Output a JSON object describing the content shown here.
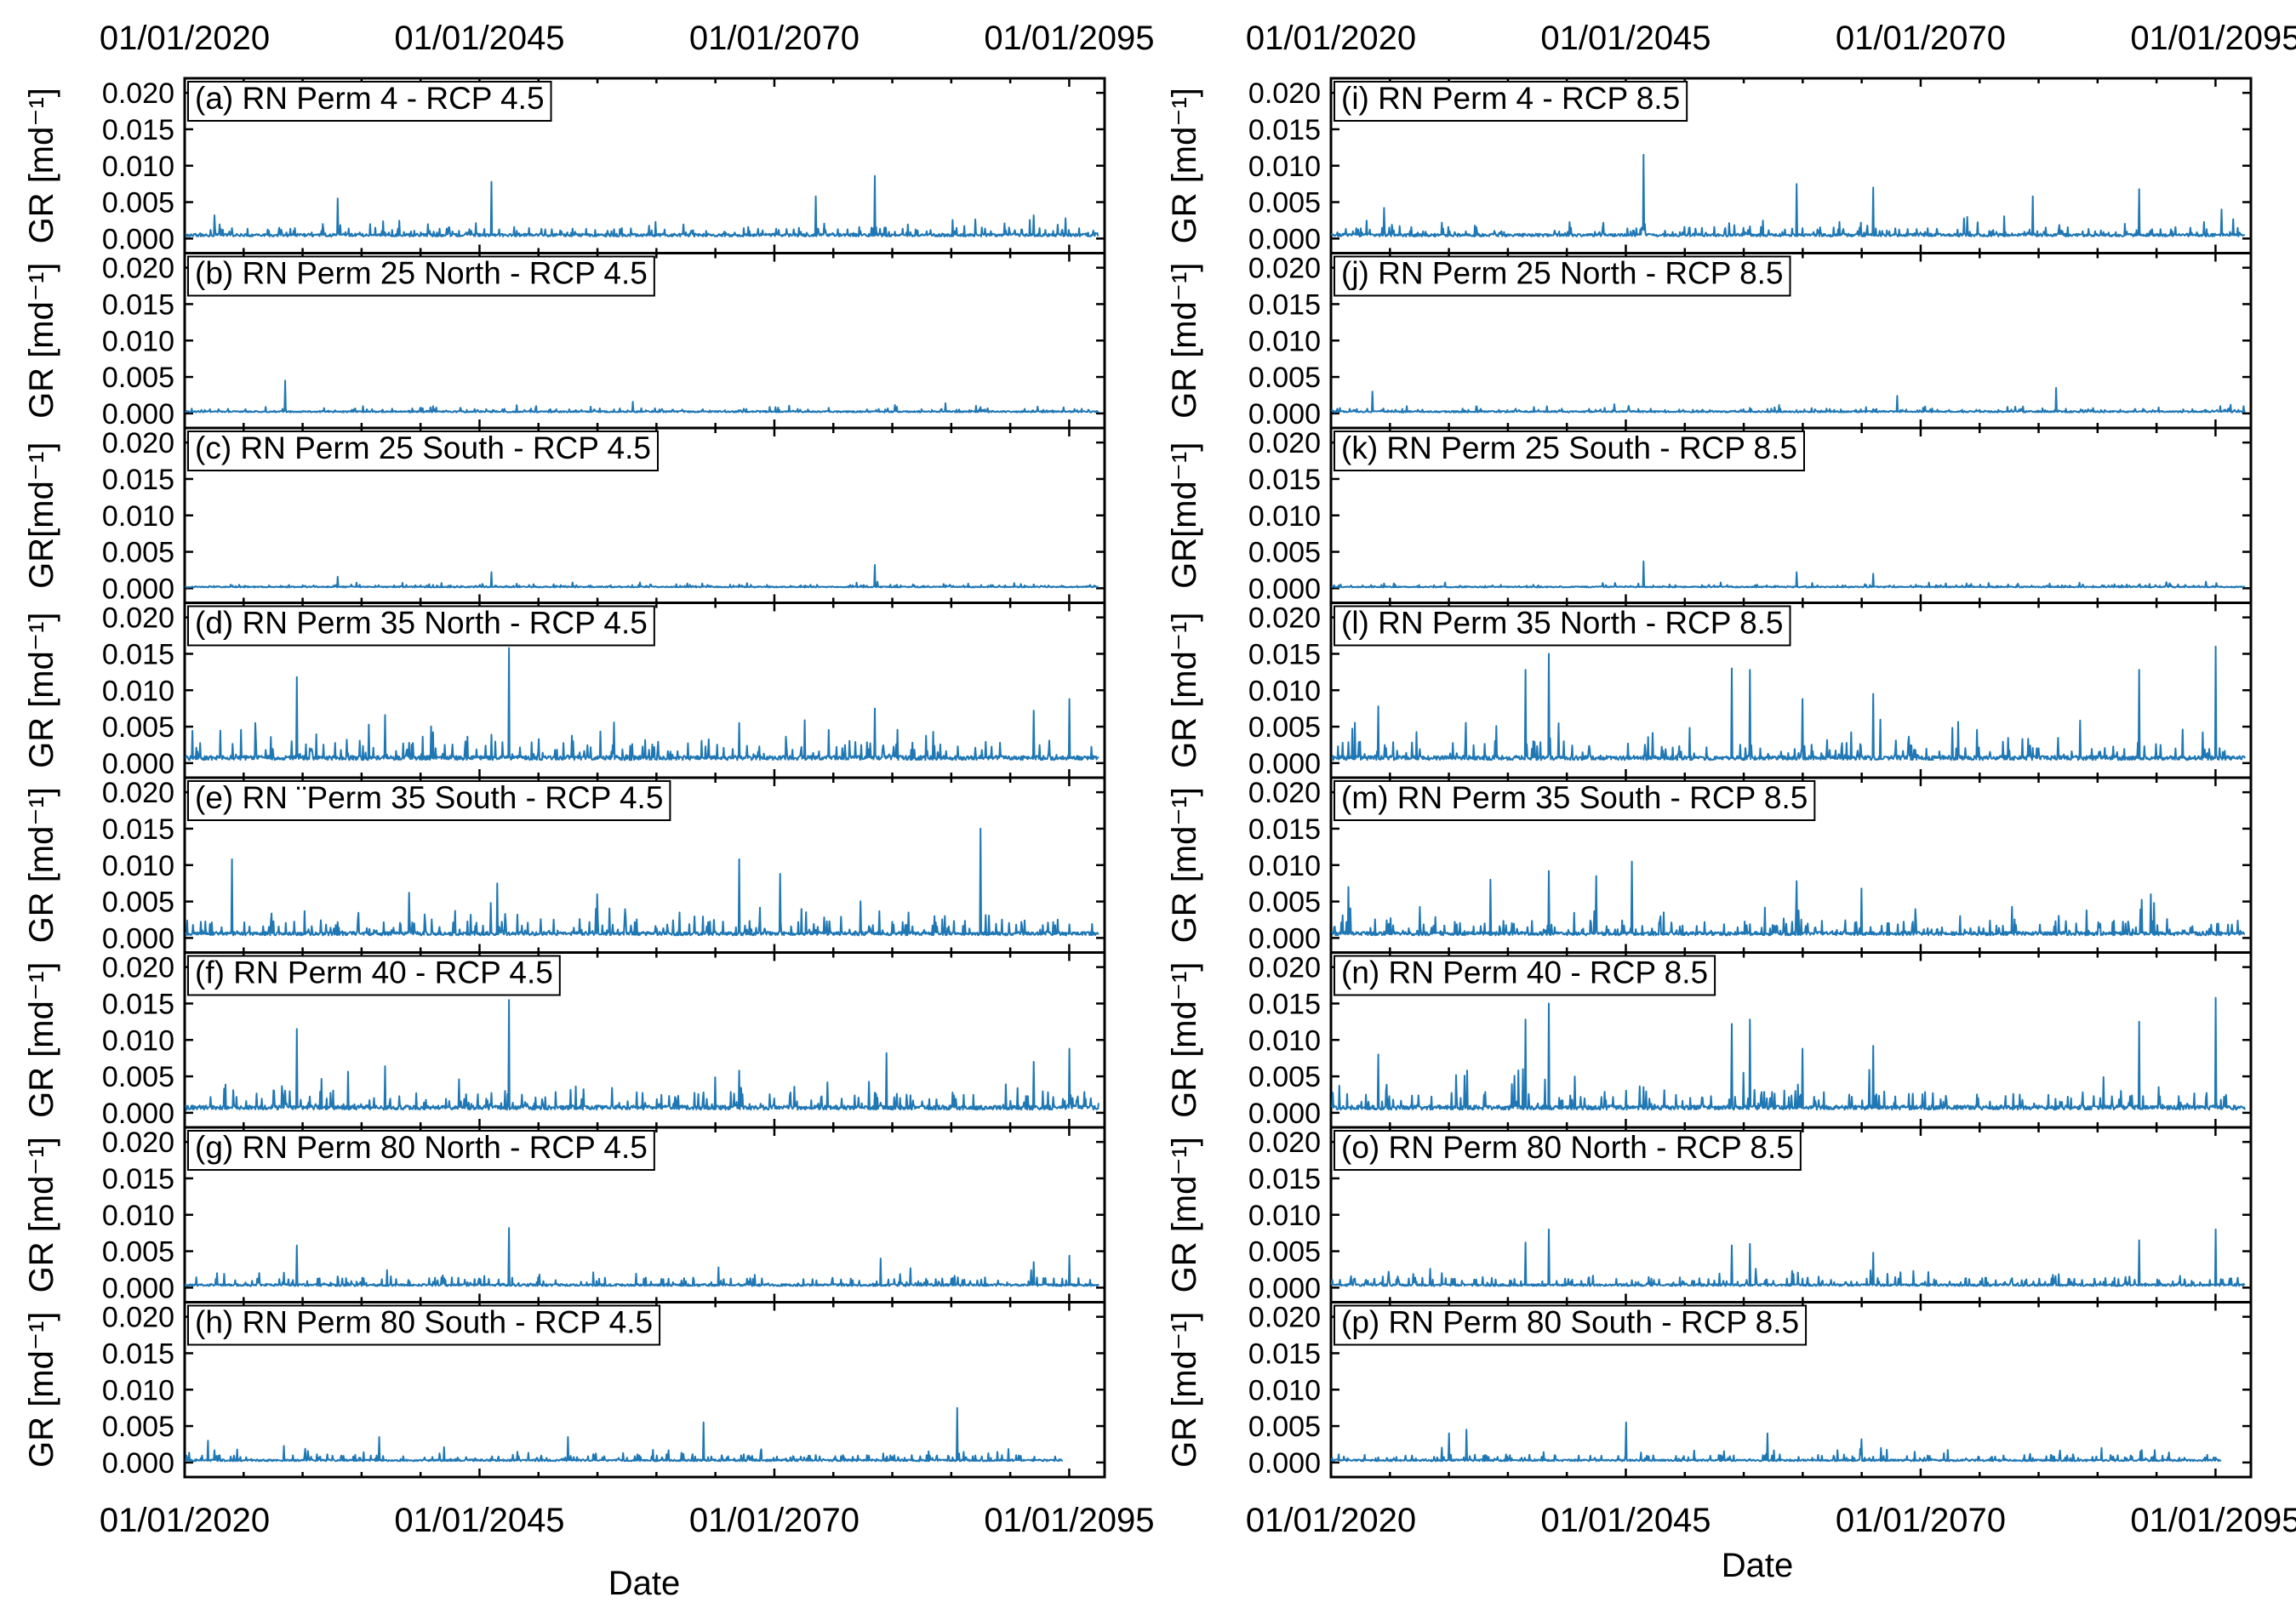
{
  "chart_data": {
    "type": "line",
    "x_axis_title": "Date",
    "x_ticks": [
      "01/01/2020",
      "01/01/2045",
      "01/01/2070",
      "01/01/2095"
    ],
    "x_range": [
      2020,
      2098
    ],
    "y_ticks": [
      "0.000",
      "0.005",
      "0.010",
      "0.015",
      "0.020"
    ],
    "y_range": [
      -0.002,
      0.022
    ],
    "series_color": "#1f77b4",
    "columns": [
      {
        "scenario": "RCP 4.5",
        "panels": [
          {
            "id": "a",
            "title": "(a) RN Perm 4  - RCP 4.5",
            "ylabel": "GR [md⁻¹]",
            "base": 0.0008,
            "noise": 0.001,
            "peaks": [
              [
                2022.5,
                0.0032
              ],
              [
                2033.0,
                0.0055
              ],
              [
                2046.0,
                0.0078
              ],
              [
                2073.5,
                0.0058
              ],
              [
                2078.5,
                0.0086
              ],
              [
                2092.0,
                0.0032
              ]
            ]
          },
          {
            "id": "b",
            "title": "(b) RN Perm 25 North - RCP 4.5",
            "ylabel": "GR [md⁻¹]",
            "base": 0.0004,
            "noise": 0.0004,
            "peaks": [
              [
                2028.5,
                0.0045
              ],
              [
                2058.0,
                0.0016
              ],
              [
                2084.5,
                0.0014
              ]
            ]
          },
          {
            "id": "c",
            "title": "(c) RN Perm 25 South - RCP 4.5",
            "ylabel": "GR[md⁻¹]",
            "base": 0.0003,
            "noise": 0.0003,
            "peaks": [
              [
                2033.0,
                0.0016
              ],
              [
                2046.0,
                0.0022
              ],
              [
                2078.5,
                0.0032
              ]
            ]
          },
          {
            "id": "d",
            "title": "(d) RN Perm 35 North - RCP 4.5",
            "ylabel": "GR [md⁻¹]",
            "base": 0.0012,
            "noise": 0.0022,
            "peaks": [
              [
                2026.0,
                0.0055
              ],
              [
                2029.5,
                0.0118
              ],
              [
                2037.0,
                0.0066
              ],
              [
                2047.5,
                0.0158
              ],
              [
                2067.0,
                0.0055
              ],
              [
                2078.5,
                0.0075
              ],
              [
                2092.0,
                0.0072
              ],
              [
                2095.0,
                0.0088
              ]
            ]
          },
          {
            "id": "e",
            "title": "(e) RN ¨Perm 35 South - RCP 4.5",
            "ylabel": "GR [md⁻¹]",
            "base": 0.001,
            "noise": 0.0018,
            "peaks": [
              [
                2024.0,
                0.0108
              ],
              [
                2039.0,
                0.0062
              ],
              [
                2046.5,
                0.0075
              ],
              [
                2055.0,
                0.006
              ],
              [
                2067.0,
                0.0108
              ],
              [
                2070.5,
                0.0088
              ],
              [
                2087.5,
                0.015
              ]
            ]
          },
          {
            "id": "f",
            "title": "(f) RN Perm 40 - RCP 4.5",
            "ylabel": "GR [md⁻¹]",
            "base": 0.0012,
            "noise": 0.0022,
            "peaks": [
              [
                2029.5,
                0.0115
              ],
              [
                2037.0,
                0.0064
              ],
              [
                2047.5,
                0.0155
              ],
              [
                2067.0,
                0.0058
              ],
              [
                2079.5,
                0.0082
              ],
              [
                2092.0,
                0.007
              ],
              [
                2095.0,
                0.0088
              ]
            ]
          },
          {
            "id": "g",
            "title": "(g) RN Perm 80 North - RCP 4.5",
            "ylabel": "GR [md⁻¹]",
            "base": 0.0006,
            "noise": 0.001,
            "peaks": [
              [
                2029.5,
                0.0058
              ],
              [
                2047.5,
                0.0082
              ],
              [
                2079.0,
                0.004
              ],
              [
                2092.0,
                0.0035
              ],
              [
                2095.0,
                0.0044
              ]
            ]
          },
          {
            "id": "h",
            "title": "(h) RN Perm 80 South - RCP 4.5",
            "ylabel": "GR [md⁻¹]",
            "base": 0.0005,
            "noise": 0.0008,
            "peaks": [
              [
                2022.0,
                0.003
              ],
              [
                2036.5,
                0.0035
              ],
              [
                2052.5,
                0.0035
              ],
              [
                2064.0,
                0.0055
              ],
              [
                2085.5,
                0.0075
              ]
            ],
            "x_end": 2094.5
          }
        ]
      },
      {
        "scenario": "RCP 8.5",
        "panels": [
          {
            "id": "i",
            "title": "(i) RN Perm 4 - RCP 8.5",
            "ylabel": "GR [md⁻¹]",
            "base": 0.0008,
            "noise": 0.001,
            "peaks": [
              [
                2024.5,
                0.0042
              ],
              [
                2046.5,
                0.0115
              ],
              [
                2059.5,
                0.0075
              ],
              [
                2066.0,
                0.007
              ],
              [
                2079.5,
                0.0058
              ],
              [
                2088.5,
                0.0068
              ],
              [
                2095.5,
                0.004
              ]
            ]
          },
          {
            "id": "j",
            "title": "(j) RN Perm 25 North - RCP 8.5",
            "ylabel": "GR [md⁻¹]",
            "base": 0.0004,
            "noise": 0.0004,
            "peaks": [
              [
                2023.5,
                0.003
              ],
              [
                2068.0,
                0.0024
              ],
              [
                2081.5,
                0.0035
              ]
            ]
          },
          {
            "id": "k",
            "title": "(k) RN Perm 25 South - RCP 8.5",
            "ylabel": "GR[md⁻¹]",
            "base": 0.0003,
            "noise": 0.0003,
            "peaks": [
              [
                2046.5,
                0.0037
              ],
              [
                2059.5,
                0.0022
              ],
              [
                2066.0,
                0.002
              ]
            ]
          },
          {
            "id": "l",
            "title": "(l) RN Perm 35 North - RCP 8.5",
            "ylabel": "GR [md⁻¹]",
            "base": 0.0012,
            "noise": 0.0022,
            "peaks": [
              [
                2024.0,
                0.0078
              ],
              [
                2036.5,
                0.0128
              ],
              [
                2038.5,
                0.015
              ],
              [
                2054.0,
                0.013
              ],
              [
                2055.5,
                0.0128
              ],
              [
                2060.0,
                0.0088
              ],
              [
                2066.0,
                0.0095
              ],
              [
                2088.5,
                0.0128
              ],
              [
                2095.0,
                0.016
              ]
            ]
          },
          {
            "id": "m",
            "title": "(m) RN Perm 35 South - RCP 8.5",
            "ylabel": "GR [md⁻¹]",
            "base": 0.001,
            "noise": 0.0018,
            "peaks": [
              [
                2021.5,
                0.007
              ],
              [
                2033.5,
                0.008
              ],
              [
                2038.5,
                0.0092
              ],
              [
                2042.5,
                0.0085
              ],
              [
                2045.5,
                0.0105
              ],
              [
                2059.5,
                0.0078
              ],
              [
                2065.0,
                0.0068
              ],
              [
                2089.5,
                0.006
              ]
            ]
          },
          {
            "id": "n",
            "title": "(n) RN Perm 40 - RCP 8.5",
            "ylabel": "GR [md⁻¹]",
            "base": 0.0012,
            "noise": 0.0022,
            "peaks": [
              [
                2024.0,
                0.008
              ],
              [
                2036.5,
                0.0128
              ],
              [
                2038.5,
                0.015
              ],
              [
                2054.0,
                0.0122
              ],
              [
                2055.5,
                0.0128
              ],
              [
                2060.0,
                0.0088
              ],
              [
                2066.0,
                0.0092
              ],
              [
                2088.5,
                0.0125
              ],
              [
                2095.0,
                0.0158
              ]
            ]
          },
          {
            "id": "o",
            "title": "(o) RN Perm 80 North - RCP 8.5",
            "ylabel": "GR [md⁻¹]",
            "base": 0.0006,
            "noise": 0.001,
            "peaks": [
              [
                2036.5,
                0.0062
              ],
              [
                2038.5,
                0.008
              ],
              [
                2054.0,
                0.0058
              ],
              [
                2055.5,
                0.006
              ],
              [
                2066.0,
                0.0048
              ],
              [
                2088.5,
                0.0065
              ],
              [
                2095.0,
                0.008
              ]
            ]
          },
          {
            "id": "p",
            "title": "(p) RN Perm 80 South - RCP 8.5",
            "ylabel": "GR [md⁻¹]",
            "base": 0.0005,
            "noise": 0.0008,
            "peaks": [
              [
                2030.0,
                0.004
              ],
              [
                2031.5,
                0.0045
              ],
              [
                2045.0,
                0.0055
              ],
              [
                2057.0,
                0.004
              ],
              [
                2065.0,
                0.0032
              ]
            ],
            "x_end": 2095.5
          }
        ]
      }
    ]
  }
}
